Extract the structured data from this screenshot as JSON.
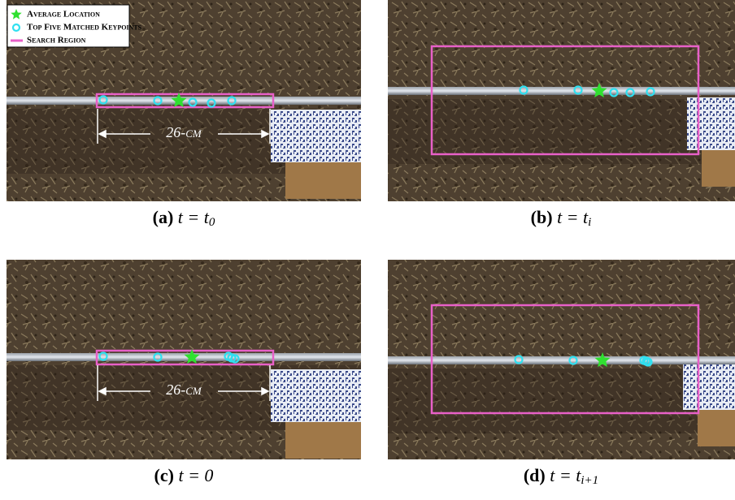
{
  "legend": {
    "items": [
      "Average Location",
      "Top Five Matched Keypoints",
      "Search Region"
    ]
  },
  "measurement": "26-cm",
  "panels": [
    {
      "label": "(a)",
      "eq": "t = t",
      "sub": "0"
    },
    {
      "label": "(b)",
      "eq": "t = t",
      "sub": "i"
    },
    {
      "label": "(c)",
      "eq": "t = 0"
    },
    {
      "label": "(d)",
      "eq": "t = t",
      "sub": "i+1"
    }
  ]
}
